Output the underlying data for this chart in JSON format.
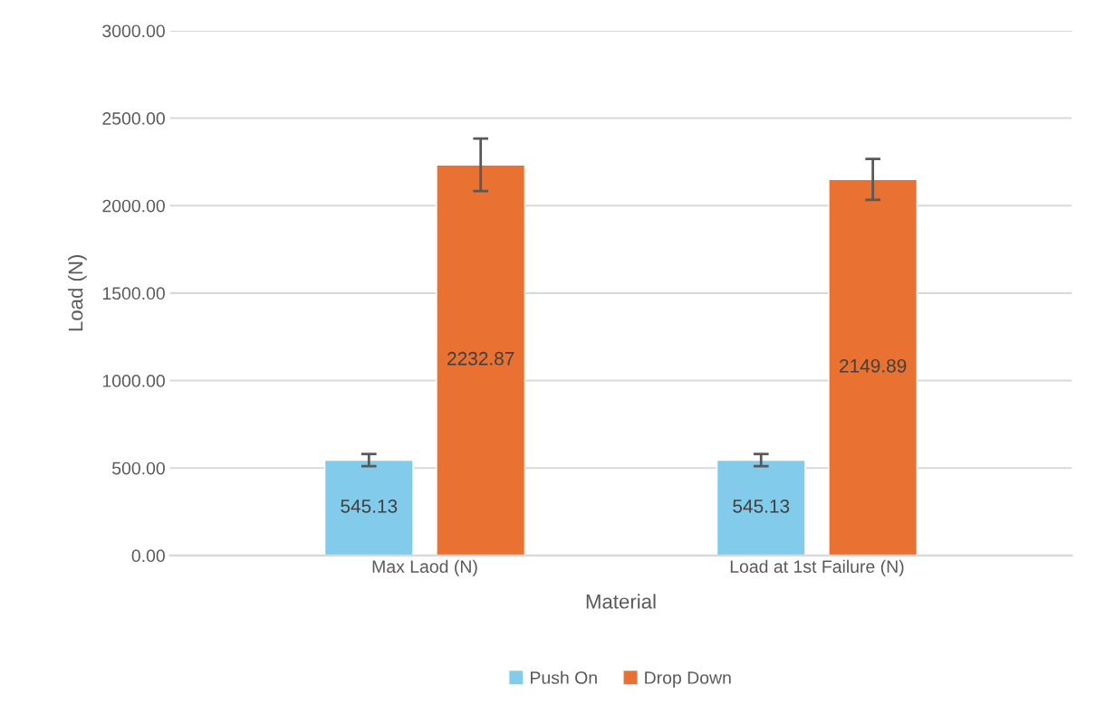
{
  "chart_data": {
    "type": "bar",
    "categories": [
      "Max Laod (N)",
      "Load at 1st Failure (N)"
    ],
    "series": [
      {
        "name": "Push On",
        "color": "#83cbeb",
        "values": [
          545.13,
          545.13
        ],
        "errors": [
          35,
          35
        ]
      },
      {
        "name": "Drop Down",
        "color": "#e97132",
        "values": [
          2232.87,
          2149.89
        ],
        "errors": [
          150,
          117
        ]
      }
    ],
    "xlabel": "Material",
    "ylabel": "Load (N)",
    "ylim": [
      0,
      3000
    ],
    "yticks": [
      {
        "value": 0,
        "label": "0.00"
      },
      {
        "value": 500,
        "label": "500.00"
      },
      {
        "value": 1000,
        "label": "1000.00"
      },
      {
        "value": 1500,
        "label": "1500.00"
      },
      {
        "value": 2000,
        "label": "2000.00"
      },
      {
        "value": 2500,
        "label": "2500.00"
      },
      {
        "value": 3000,
        "label": "3000.00"
      }
    ],
    "grid": "y",
    "legend": "bottom",
    "data_labels": true
  }
}
